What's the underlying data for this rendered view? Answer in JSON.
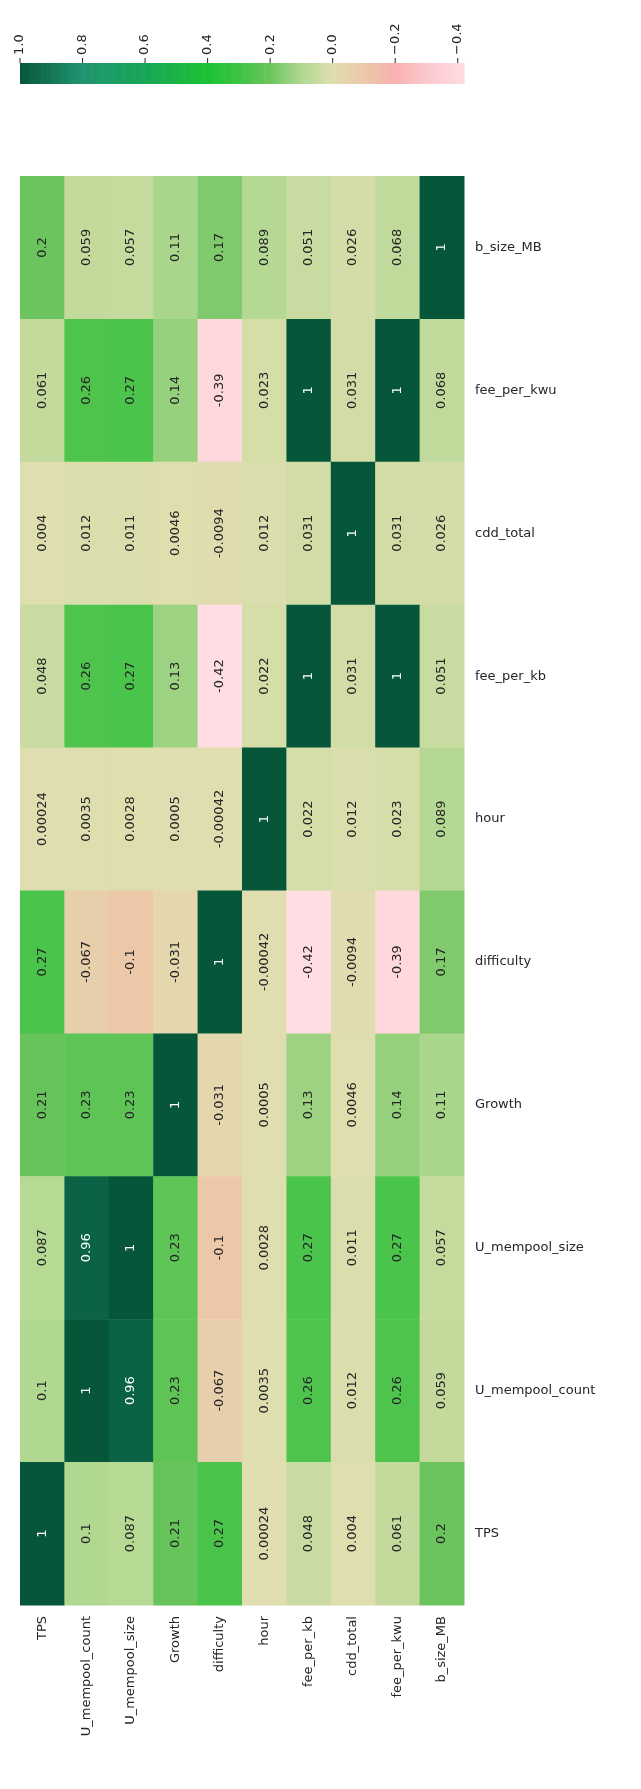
{
  "chart_data": {
    "type": "heatmap",
    "categories": [
      "TPS",
      "U_mempool_count",
      "U_mempool_size",
      "Growth",
      "difficulty",
      "hour",
      "fee_per_kb",
      "cdd_total",
      "fee_per_kwu",
      "b_size_MB"
    ],
    "y_categories": [
      "b_size_MB",
      "fee_per_kwu",
      "cdd_total",
      "fee_per_kb",
      "hour",
      "difficulty",
      "Growth",
      "U_mempool_size",
      "U_mempool_count",
      "TPS"
    ],
    "cells": [
      [
        0.2,
        0.059,
        0.057,
        0.11,
        0.17,
        0.089,
        0.051,
        0.026,
        0.068,
        1
      ],
      [
        0.061,
        0.26,
        0.27,
        0.14,
        -0.39,
        0.023,
        1,
        0.031,
        1,
        0.068
      ],
      [
        0.004,
        0.012,
        0.011,
        0.0046,
        -0.0094,
        0.012,
        0.031,
        1,
        0.031,
        0.026
      ],
      [
        0.048,
        0.26,
        0.27,
        0.13,
        -0.42,
        0.022,
        1,
        0.031,
        1,
        0.051
      ],
      [
        0.00024,
        0.0035,
        0.0028,
        0.0005,
        -0.00042,
        1,
        0.022,
        0.012,
        0.023,
        0.089
      ],
      [
        0.27,
        -0.067,
        -0.1,
        -0.031,
        1,
        -0.00042,
        -0.42,
        -0.0094,
        -0.39,
        0.17
      ],
      [
        0.21,
        0.23,
        0.23,
        1,
        -0.031,
        0.0005,
        0.13,
        0.0046,
        0.14,
        0.11
      ],
      [
        0.087,
        0.96,
        1,
        0.23,
        -0.1,
        0.0028,
        0.27,
        0.011,
        0.27,
        0.057
      ],
      [
        0.1,
        1,
        0.96,
        0.23,
        -0.067,
        0.0035,
        0.26,
        0.012,
        0.26,
        0.059
      ],
      [
        1,
        0.1,
        0.087,
        0.21,
        0.27,
        0.00024,
        0.048,
        0.004,
        0.061,
        0.2
      ]
    ],
    "data_labels": true,
    "clim": [
      -0.42,
      1
    ],
    "cticks": [
      {
        "value": -0.4,
        "label": "−0.4"
      },
      {
        "value": -0.2,
        "label": "−0.2"
      },
      {
        "value": 0,
        "label": "0.0"
      },
      0.2,
      0.4,
      0.6,
      0.8,
      {
        "value": 1,
        "label": "1.0"
      }
    ]
  }
}
